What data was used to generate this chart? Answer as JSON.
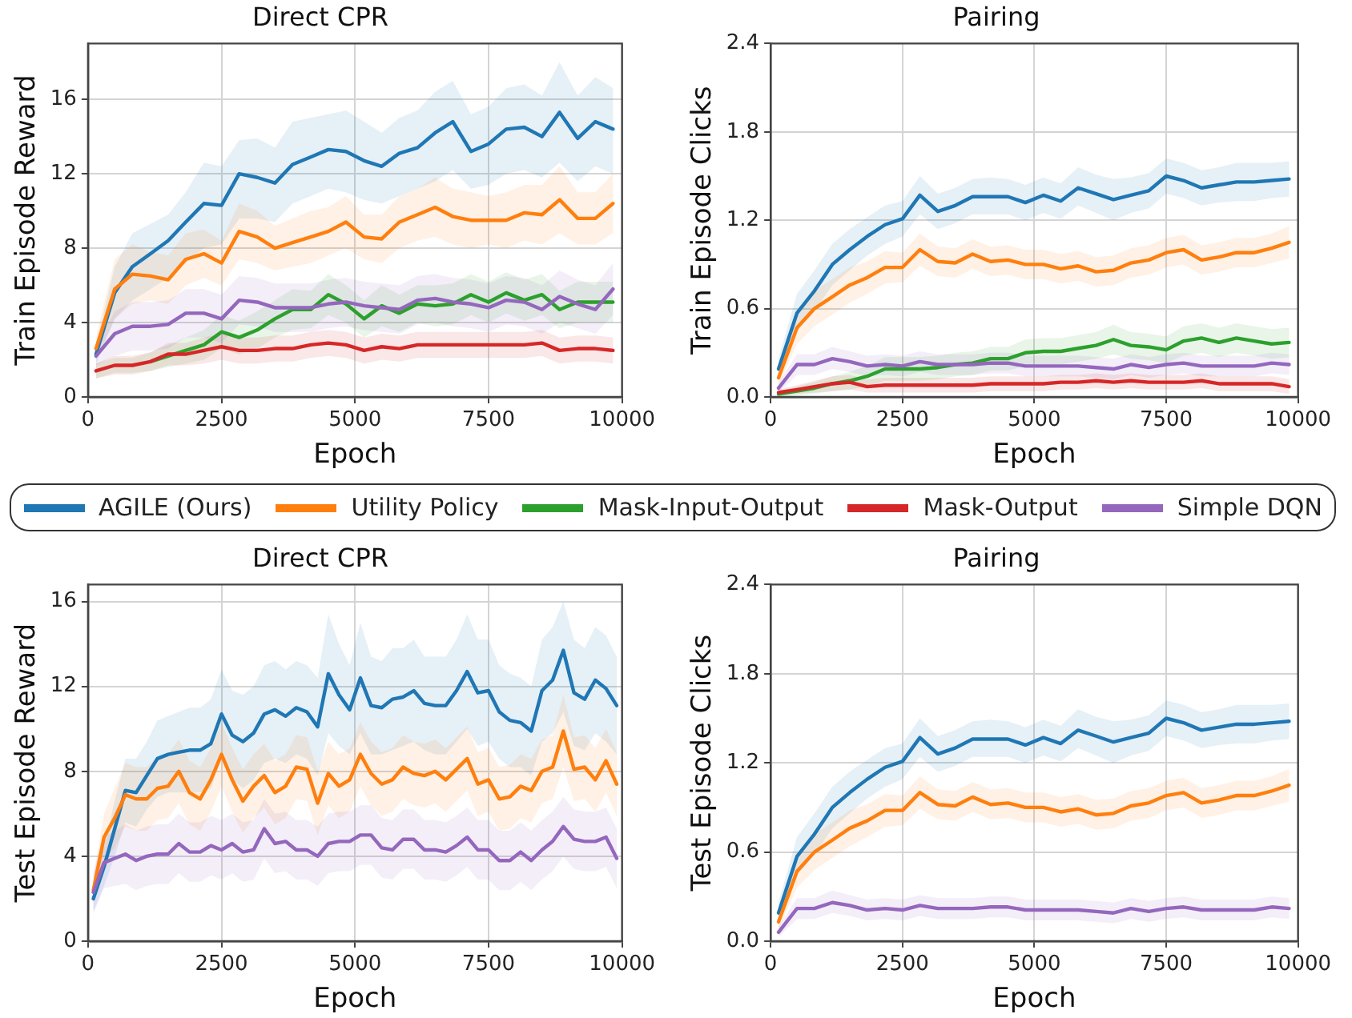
{
  "chart_data": [
    {
      "type": "line",
      "title": "Direct CPR",
      "xlabel": "Epoch",
      "ylabel": "Train Episode Reward",
      "xlim": [
        0,
        10000
      ],
      "xticks": [
        0,
        2500,
        5000,
        7500,
        10000
      ],
      "ylim": [
        0,
        19
      ],
      "yticks": [
        0,
        4,
        8,
        12,
        16
      ],
      "grid": true,
      "legend": "bottom",
      "marker": "none",
      "line_style": "solid",
      "x": [
        150,
        500,
        830,
        1170,
        1500,
        1830,
        2170,
        2500,
        2830,
        3170,
        3500,
        3830,
        4170,
        4500,
        4830,
        5170,
        5500,
        5830,
        6170,
        6500,
        6830,
        7170,
        7500,
        7830,
        8170,
        8500,
        8830,
        9170,
        9500,
        9830
      ],
      "series": [
        {
          "name": "AGILE (Ours)",
          "color": "#1f77b4",
          "values": [
            2.3,
            5.6,
            7.0,
            7.7,
            8.4,
            9.4,
            10.4,
            10.3,
            12.0,
            11.8,
            11.5,
            12.5,
            12.9,
            13.3,
            13.2,
            12.7,
            12.4,
            13.1,
            13.4,
            14.2,
            14.8,
            13.2,
            13.6,
            14.4,
            14.5,
            14.0,
            15.3,
            13.9,
            14.8,
            14.4
          ],
          "lower": [
            1.8,
            4.2,
            5.2,
            5.8,
            6.4,
            7.2,
            8.0,
            8.2,
            9.6,
            9.6,
            9.4,
            10.4,
            10.8,
            11.2,
            11.0,
            10.6,
            10.4,
            10.8,
            11.2,
            11.6,
            12.2,
            11.2,
            11.4,
            12.0,
            12.2,
            11.8,
            12.6,
            11.6,
            12.4,
            12.0
          ],
          "upper": [
            2.8,
            7.0,
            8.8,
            9.3,
            9.8,
            11.0,
            12.6,
            12.4,
            13.8,
            13.9,
            13.4,
            14.8,
            15.0,
            15.2,
            15.4,
            14.8,
            14.2,
            15.0,
            15.4,
            16.4,
            17.0,
            15.2,
            15.6,
            16.6,
            16.8,
            16.2,
            18.0,
            16.2,
            17.2,
            16.6
          ]
        },
        {
          "name": "Utility Policy",
          "color": "#ff7f0e",
          "values": [
            2.6,
            5.8,
            6.6,
            6.5,
            6.3,
            7.4,
            7.7,
            7.2,
            8.9,
            8.6,
            8.0,
            8.3,
            8.6,
            8.9,
            9.4,
            8.6,
            8.5,
            9.4,
            9.8,
            10.2,
            9.7,
            9.5,
            9.5,
            9.5,
            9.9,
            9.8,
            10.6,
            9.6,
            9.6,
            10.4
          ],
          "lower": [
            2.0,
            4.2,
            5.0,
            5.2,
            5.0,
            6.0,
            6.4,
            6.0,
            7.4,
            7.2,
            6.8,
            7.0,
            7.2,
            7.6,
            8.0,
            7.4,
            7.2,
            8.0,
            8.4,
            8.6,
            8.2,
            8.0,
            8.2,
            8.0,
            8.4,
            8.2,
            8.8,
            8.2,
            8.2,
            8.8
          ],
          "upper": [
            3.2,
            7.4,
            8.2,
            7.8,
            7.6,
            8.8,
            9.0,
            8.4,
            10.4,
            10.0,
            9.2,
            9.6,
            10.0,
            10.2,
            10.8,
            9.8,
            9.8,
            10.8,
            11.2,
            11.8,
            11.2,
            11.0,
            10.8,
            11.0,
            11.4,
            11.4,
            12.4,
            11.0,
            11.0,
            12.0
          ]
        },
        {
          "name": "Mask-Input-Output",
          "color": "#2ca02c",
          "values": [
            null,
            null,
            null,
            1.9,
            2.2,
            2.5,
            2.8,
            3.5,
            3.2,
            3.6,
            4.2,
            4.7,
            4.7,
            5.5,
            5.0,
            4.2,
            4.9,
            4.5,
            5.0,
            4.9,
            5.0,
            5.5,
            5.1,
            5.6,
            5.2,
            5.5,
            4.7,
            5.1,
            5.1,
            5.1
          ],
          "lower": [
            1.0,
            1.3,
            1.3,
            1.4,
            1.6,
            1.8,
            2.0,
            2.6,
            2.3,
            2.6,
            3.2,
            3.6,
            3.7,
            4.4,
            4.0,
            3.2,
            3.8,
            3.5,
            4.0,
            3.8,
            3.9,
            4.4,
            4.0,
            4.5,
            4.1,
            4.4,
            3.7,
            4.0,
            4.0,
            4.0
          ],
          "upper": [
            1.8,
            2.1,
            2.1,
            2.4,
            2.8,
            3.2,
            3.6,
            4.4,
            4.1,
            4.6,
            5.2,
            5.8,
            5.7,
            6.6,
            6.0,
            5.2,
            6.0,
            5.5,
            6.0,
            6.0,
            6.1,
            6.6,
            6.2,
            6.7,
            6.3,
            6.6,
            5.7,
            6.2,
            6.2,
            6.2
          ]
        },
        {
          "name": "Mask-Output",
          "color": "#d62728",
          "values": [
            1.4,
            1.7,
            1.7,
            1.9,
            2.3,
            2.3,
            2.5,
            2.7,
            2.5,
            2.5,
            2.6,
            2.6,
            2.8,
            2.9,
            2.8,
            2.5,
            2.7,
            2.6,
            2.8,
            2.8,
            2.8,
            2.8,
            2.8,
            2.8,
            2.8,
            2.9,
            2.5,
            2.6,
            2.6,
            2.5
          ],
          "lower": [
            1.0,
            1.2,
            1.2,
            1.4,
            1.7,
            1.7,
            1.8,
            2.0,
            1.8,
            1.8,
            1.9,
            1.9,
            2.1,
            2.2,
            2.1,
            1.8,
            2.0,
            1.9,
            2.1,
            2.1,
            2.1,
            2.1,
            2.1,
            2.1,
            2.1,
            2.2,
            1.8,
            1.9,
            1.9,
            1.8
          ],
          "upper": [
            1.8,
            2.2,
            2.2,
            2.4,
            2.9,
            2.9,
            3.2,
            3.4,
            3.2,
            3.2,
            3.3,
            3.3,
            3.5,
            3.6,
            3.5,
            3.2,
            3.4,
            3.3,
            3.5,
            3.5,
            3.5,
            3.5,
            3.5,
            3.5,
            3.5,
            3.6,
            3.2,
            3.3,
            3.3,
            3.2
          ]
        },
        {
          "name": "Simple DQN",
          "color": "#9467bd",
          "values": [
            2.2,
            3.4,
            3.8,
            3.8,
            3.9,
            4.5,
            4.5,
            4.2,
            5.2,
            5.1,
            4.8,
            4.8,
            4.8,
            5.0,
            5.1,
            4.9,
            4.8,
            4.7,
            5.2,
            5.3,
            5.1,
            5.0,
            4.8,
            5.2,
            5.1,
            4.7,
            5.4,
            5.0,
            4.7,
            5.8
          ],
          "lower": [
            1.7,
            2.2,
            2.5,
            2.5,
            2.6,
            3.2,
            3.2,
            2.9,
            3.9,
            3.8,
            3.5,
            3.5,
            3.5,
            3.7,
            3.8,
            3.6,
            3.5,
            3.4,
            3.9,
            4.0,
            3.8,
            3.7,
            3.5,
            3.9,
            3.8,
            3.4,
            4.0,
            3.7,
            3.4,
            4.4
          ],
          "upper": [
            2.7,
            4.6,
            5.1,
            5.1,
            5.2,
            5.8,
            5.8,
            5.5,
            6.5,
            6.4,
            6.1,
            6.1,
            6.1,
            6.3,
            6.4,
            6.2,
            6.1,
            6.0,
            6.5,
            6.6,
            6.4,
            6.3,
            6.1,
            6.5,
            6.4,
            6.0,
            6.8,
            6.3,
            6.0,
            7.2
          ]
        }
      ]
    },
    {
      "type": "line",
      "title": "Pairing",
      "xlabel": "Epoch",
      "ylabel": "Train Episode Clicks",
      "xlim": [
        0,
        10000
      ],
      "xticks": [
        0,
        2500,
        5000,
        7500,
        10000
      ],
      "ylim": [
        0,
        2.4
      ],
      "yticks": [
        {
          "value": 0,
          "label": "0.0"
        },
        0.6,
        1.2,
        1.8,
        2.4
      ],
      "grid": true,
      "marker": "none",
      "line_style": "solid",
      "x": [
        150,
        500,
        830,
        1170,
        1500,
        1830,
        2170,
        2500,
        2830,
        3170,
        3500,
        3830,
        4170,
        4500,
        4830,
        5170,
        5500,
        5830,
        6170,
        6500,
        6830,
        7170,
        7500,
        7830,
        8170,
        8500,
        8830,
        9170,
        9500,
        9830
      ],
      "series": [
        {
          "color": "#1f77b4",
          "values": [
            0.19,
            0.57,
            0.72,
            0.9,
            1.0,
            1.09,
            1.17,
            1.21,
            1.37,
            1.26,
            1.3,
            1.36,
            1.36,
            1.36,
            1.32,
            1.37,
            1.33,
            1.42,
            1.38,
            1.34,
            1.37,
            1.4,
            1.5,
            1.47,
            1.42,
            1.44,
            1.46,
            1.46,
            1.47,
            1.48
          ],
          "lower": [
            0.12,
            0.45,
            0.58,
            0.76,
            0.86,
            0.96,
            1.04,
            1.09,
            1.24,
            1.14,
            1.18,
            1.24,
            1.24,
            1.24,
            1.2,
            1.25,
            1.21,
            1.3,
            1.25,
            1.2,
            1.25,
            1.28,
            1.38,
            1.35,
            1.3,
            1.32,
            1.33,
            1.33,
            1.35,
            1.36
          ],
          "upper": [
            0.26,
            0.7,
            0.86,
            1.04,
            1.14,
            1.22,
            1.3,
            1.33,
            1.5,
            1.38,
            1.42,
            1.48,
            1.49,
            1.48,
            1.44,
            1.49,
            1.45,
            1.56,
            1.51,
            1.48,
            1.49,
            1.52,
            1.62,
            1.59,
            1.54,
            1.56,
            1.59,
            1.59,
            1.59,
            1.6
          ]
        },
        {
          "color": "#ff7f0e",
          "values": [
            0.13,
            0.47,
            0.6,
            0.68,
            0.76,
            0.81,
            0.88,
            0.88,
            1.0,
            0.92,
            0.91,
            0.97,
            0.92,
            0.93,
            0.9,
            0.9,
            0.87,
            0.89,
            0.85,
            0.86,
            0.91,
            0.93,
            0.98,
            1.0,
            0.93,
            0.95,
            0.98,
            0.98,
            1.01,
            1.05
          ],
          "lower": [
            0.08,
            0.36,
            0.48,
            0.56,
            0.64,
            0.7,
            0.77,
            0.78,
            0.89,
            0.82,
            0.81,
            0.87,
            0.82,
            0.83,
            0.8,
            0.8,
            0.77,
            0.79,
            0.75,
            0.76,
            0.81,
            0.83,
            0.88,
            0.9,
            0.83,
            0.85,
            0.88,
            0.88,
            0.91,
            0.94
          ],
          "upper": [
            0.18,
            0.58,
            0.72,
            0.8,
            0.88,
            0.92,
            0.99,
            0.98,
            1.11,
            1.02,
            1.01,
            1.07,
            1.02,
            1.03,
            1.0,
            1.0,
            0.97,
            0.99,
            0.95,
            0.96,
            1.01,
            1.03,
            1.08,
            1.1,
            1.03,
            1.05,
            1.08,
            1.08,
            1.11,
            1.16
          ]
        },
        {
          "color": "#2ca02c",
          "values": [
            0.02,
            0.04,
            0.06,
            0.09,
            0.11,
            0.14,
            0.19,
            0.19,
            0.19,
            0.2,
            0.22,
            0.23,
            0.26,
            0.26,
            0.3,
            0.31,
            0.31,
            0.33,
            0.35,
            0.39,
            0.35,
            0.34,
            0.32,
            0.38,
            0.4,
            0.37,
            0.4,
            0.38,
            0.36,
            0.37
          ],
          "lower": [
            0.0,
            0.01,
            0.02,
            0.04,
            0.05,
            0.07,
            0.11,
            0.11,
            0.11,
            0.12,
            0.14,
            0.15,
            0.18,
            0.18,
            0.21,
            0.22,
            0.22,
            0.24,
            0.26,
            0.29,
            0.26,
            0.25,
            0.23,
            0.28,
            0.3,
            0.27,
            0.3,
            0.28,
            0.26,
            0.27
          ],
          "upper": [
            0.04,
            0.07,
            0.1,
            0.14,
            0.17,
            0.21,
            0.27,
            0.27,
            0.27,
            0.28,
            0.3,
            0.31,
            0.34,
            0.34,
            0.39,
            0.4,
            0.4,
            0.42,
            0.44,
            0.49,
            0.44,
            0.43,
            0.41,
            0.48,
            0.5,
            0.47,
            0.5,
            0.48,
            0.46,
            0.47
          ]
        },
        {
          "color": "#d62728",
          "values": [
            0.03,
            0.05,
            0.07,
            0.09,
            0.1,
            0.07,
            0.08,
            0.08,
            0.08,
            0.08,
            0.08,
            0.08,
            0.09,
            0.09,
            0.09,
            0.09,
            0.1,
            0.1,
            0.11,
            0.1,
            0.11,
            0.1,
            0.1,
            0.1,
            0.11,
            0.09,
            0.09,
            0.09,
            0.09,
            0.07
          ],
          "lower": [
            0.01,
            0.02,
            0.03,
            0.04,
            0.05,
            0.03,
            0.03,
            0.03,
            0.03,
            0.03,
            0.03,
            0.03,
            0.04,
            0.04,
            0.04,
            0.04,
            0.05,
            0.05,
            0.06,
            0.05,
            0.06,
            0.05,
            0.05,
            0.05,
            0.06,
            0.04,
            0.04,
            0.04,
            0.04,
            0.02
          ],
          "upper": [
            0.05,
            0.08,
            0.11,
            0.14,
            0.15,
            0.12,
            0.13,
            0.13,
            0.13,
            0.13,
            0.13,
            0.13,
            0.14,
            0.14,
            0.14,
            0.14,
            0.15,
            0.15,
            0.16,
            0.15,
            0.16,
            0.15,
            0.15,
            0.15,
            0.16,
            0.14,
            0.14,
            0.14,
            0.14,
            0.12
          ]
        },
        {
          "color": "#9467bd",
          "values": [
            0.06,
            0.22,
            0.22,
            0.26,
            0.24,
            0.21,
            0.22,
            0.21,
            0.24,
            0.22,
            0.22,
            0.22,
            0.23,
            0.23,
            0.21,
            0.21,
            0.21,
            0.21,
            0.2,
            0.19,
            0.22,
            0.2,
            0.22,
            0.23,
            0.21,
            0.21,
            0.21,
            0.21,
            0.23,
            0.22
          ],
          "lower": [
            0.03,
            0.15,
            0.15,
            0.19,
            0.17,
            0.14,
            0.15,
            0.14,
            0.17,
            0.15,
            0.15,
            0.15,
            0.16,
            0.16,
            0.14,
            0.14,
            0.14,
            0.14,
            0.13,
            0.12,
            0.15,
            0.13,
            0.15,
            0.16,
            0.14,
            0.14,
            0.14,
            0.14,
            0.16,
            0.15
          ],
          "upper": [
            0.1,
            0.29,
            0.29,
            0.34,
            0.31,
            0.28,
            0.29,
            0.28,
            0.31,
            0.29,
            0.29,
            0.29,
            0.3,
            0.3,
            0.28,
            0.28,
            0.28,
            0.28,
            0.27,
            0.26,
            0.29,
            0.27,
            0.29,
            0.3,
            0.28,
            0.28,
            0.28,
            0.28,
            0.3,
            0.29
          ]
        }
      ]
    },
    {
      "type": "line",
      "title": "Direct CPR",
      "xlabel": "Epoch",
      "ylabel": "Test Episode Reward",
      "xlim": [
        0,
        10000
      ],
      "xticks": [
        0,
        2500,
        5000,
        7500,
        10000
      ],
      "ylim": [
        0,
        16.8
      ],
      "yticks": [
        0,
        4,
        8,
        12,
        16
      ],
      "grid": true,
      "marker": "none",
      "line_style": "solid",
      "x": [
        100,
        300,
        500,
        700,
        900,
        1100,
        1300,
        1500,
        1700,
        1900,
        2100,
        2300,
        2500,
        2700,
        2900,
        3100,
        3300,
        3500,
        3700,
        3900,
        4100,
        4300,
        4500,
        4700,
        4900,
        5100,
        5300,
        5500,
        5700,
        5900,
        6100,
        6300,
        6500,
        6700,
        6900,
        7100,
        7300,
        7500,
        7700,
        7900,
        8100,
        8300,
        8500,
        8700,
        8900,
        9100,
        9300,
        9500,
        9700,
        9900
      ],
      "series": [
        {
          "color": "#1f77b4",
          "values": [
            2.0,
            3.5,
            5.3,
            7.1,
            7.0,
            7.8,
            8.6,
            8.8,
            8.9,
            9.0,
            9.0,
            9.3,
            10.7,
            9.7,
            9.4,
            9.8,
            10.7,
            10.9,
            10.6,
            11.0,
            10.8,
            10.1,
            12.6,
            11.6,
            10.9,
            12.4,
            11.1,
            11.0,
            11.4,
            11.5,
            11.8,
            11.2,
            11.1,
            11.1,
            11.8,
            12.7,
            11.7,
            11.8,
            10.8,
            10.4,
            10.3,
            9.9,
            11.8,
            12.3,
            13.7,
            11.7,
            11.4,
            12.3,
            11.9,
            11.1
          ],
          "lower": [
            1.4,
            2.6,
            4.0,
            5.6,
            5.4,
            6.2,
            6.8,
            7.0,
            7.0,
            7.0,
            7.0,
            7.2,
            8.6,
            7.6,
            7.2,
            7.6,
            8.4,
            8.6,
            8.4,
            8.8,
            8.6,
            7.8,
            9.8,
            9.2,
            8.8,
            9.8,
            8.8,
            8.8,
            9.0,
            9.2,
            9.4,
            9.0,
            8.8,
            8.8,
            9.4,
            10.0,
            9.2,
            9.4,
            8.6,
            8.2,
            8.2,
            7.8,
            9.4,
            9.8,
            10.8,
            9.2,
            9.0,
            9.8,
            9.4,
            8.8
          ],
          "upper": [
            2.6,
            4.4,
            6.6,
            8.6,
            8.6,
            9.4,
            10.4,
            10.6,
            10.8,
            11.0,
            11.0,
            11.4,
            12.8,
            11.8,
            11.6,
            12.0,
            13.0,
            13.2,
            12.8,
            13.2,
            13.0,
            12.4,
            15.4,
            14.0,
            13.0,
            15.0,
            13.4,
            13.2,
            13.8,
            13.8,
            14.2,
            13.4,
            13.4,
            13.4,
            14.2,
            15.4,
            14.2,
            14.2,
            13.0,
            12.6,
            12.4,
            12.0,
            14.2,
            14.8,
            16.0,
            14.2,
            13.8,
            14.8,
            14.4,
            13.4
          ]
        },
        {
          "color": "#ff7f0e",
          "values": [
            2.4,
            4.9,
            5.8,
            6.9,
            6.7,
            6.7,
            7.2,
            7.3,
            8.0,
            7.0,
            6.7,
            7.6,
            8.8,
            7.6,
            6.6,
            7.3,
            7.8,
            7.0,
            7.3,
            8.2,
            8.1,
            6.5,
            7.9,
            7.3,
            7.6,
            8.8,
            7.9,
            7.4,
            7.6,
            8.2,
            7.9,
            7.8,
            8.0,
            7.6,
            8.1,
            8.6,
            7.4,
            7.6,
            6.7,
            6.8,
            7.3,
            7.1,
            8.0,
            8.2,
            9.9,
            8.1,
            8.2,
            7.6,
            8.5,
            7.4
          ],
          "lower": [
            1.8,
            3.8,
            4.4,
            5.4,
            5.2,
            5.2,
            5.7,
            5.8,
            6.5,
            5.5,
            5.2,
            6.1,
            7.3,
            6.1,
            5.1,
            5.8,
            6.3,
            5.5,
            5.8,
            6.7,
            6.6,
            5.0,
            6.4,
            5.8,
            6.1,
            7.3,
            6.4,
            5.9,
            6.1,
            6.7,
            6.4,
            6.3,
            6.5,
            6.1,
            6.6,
            7.1,
            5.9,
            6.1,
            5.2,
            5.3,
            5.8,
            5.6,
            6.5,
            6.7,
            8.2,
            6.6,
            6.7,
            6.1,
            7.0,
            5.9
          ],
          "upper": [
            3.0,
            6.0,
            7.2,
            8.4,
            8.2,
            8.2,
            8.7,
            8.8,
            9.5,
            8.5,
            8.2,
            9.1,
            10.3,
            9.1,
            8.1,
            8.8,
            9.3,
            8.5,
            8.8,
            9.7,
            9.6,
            8.0,
            9.4,
            8.8,
            9.1,
            10.3,
            9.4,
            8.9,
            9.1,
            9.7,
            9.4,
            9.3,
            9.5,
            9.1,
            9.6,
            10.1,
            8.9,
            9.1,
            8.2,
            8.3,
            8.8,
            8.6,
            9.5,
            9.7,
            11.6,
            9.6,
            9.7,
            9.1,
            10.0,
            8.9
          ]
        },
        {
          "color": "#9467bd",
          "values": [
            2.3,
            3.7,
            3.9,
            4.1,
            3.8,
            4.0,
            4.1,
            4.1,
            4.6,
            4.2,
            4.2,
            4.5,
            4.3,
            4.6,
            4.2,
            4.3,
            5.3,
            4.6,
            4.7,
            4.3,
            4.3,
            4.0,
            4.6,
            4.7,
            4.7,
            5.0,
            5.0,
            4.4,
            4.3,
            4.8,
            4.8,
            4.3,
            4.3,
            4.2,
            4.5,
            4.9,
            4.3,
            4.3,
            3.8,
            3.8,
            4.2,
            3.8,
            4.3,
            4.7,
            5.4,
            4.8,
            4.7,
            4.7,
            4.9,
            3.9
          ],
          "lower": [
            1.3,
            2.5,
            2.6,
            2.7,
            2.4,
            2.6,
            2.7,
            2.7,
            3.2,
            2.8,
            2.8,
            3.1,
            2.9,
            3.2,
            2.8,
            2.9,
            3.9,
            3.2,
            3.3,
            2.9,
            2.9,
            2.6,
            3.2,
            3.3,
            3.3,
            3.6,
            3.6,
            3.0,
            2.9,
            3.4,
            3.4,
            2.9,
            2.9,
            2.8,
            3.1,
            3.5,
            2.9,
            2.9,
            2.4,
            2.4,
            2.8,
            2.4,
            2.9,
            3.3,
            4.0,
            3.4,
            3.3,
            3.3,
            3.5,
            2.5
          ],
          "upper": [
            3.3,
            4.9,
            5.2,
            5.5,
            5.2,
            5.4,
            5.5,
            5.5,
            6.0,
            5.6,
            5.6,
            5.9,
            5.7,
            6.0,
            5.6,
            5.7,
            6.7,
            6.0,
            6.1,
            5.7,
            5.7,
            5.4,
            6.0,
            6.1,
            6.1,
            6.4,
            6.4,
            5.8,
            5.7,
            6.2,
            6.2,
            5.7,
            5.7,
            5.6,
            5.9,
            6.3,
            5.7,
            5.7,
            5.2,
            5.2,
            5.6,
            5.2,
            5.7,
            6.1,
            6.8,
            6.2,
            6.1,
            6.1,
            6.3,
            5.3
          ]
        }
      ]
    },
    {
      "type": "line",
      "title": "Pairing",
      "xlabel": "Epoch",
      "ylabel": "Test Episode Clicks",
      "xlim": [
        0,
        10000
      ],
      "xticks": [
        0,
        2500,
        5000,
        7500,
        10000
      ],
      "ylim": [
        0,
        2.4
      ],
      "yticks": [
        {
          "value": 0,
          "label": "0.0"
        },
        0.6,
        1.2,
        1.8,
        2.4
      ],
      "grid": true,
      "marker": "none",
      "line_style": "solid",
      "x": [
        150,
        500,
        830,
        1170,
        1500,
        1830,
        2170,
        2500,
        2830,
        3170,
        3500,
        3830,
        4170,
        4500,
        4830,
        5170,
        5500,
        5830,
        6170,
        6500,
        6830,
        7170,
        7500,
        7830,
        8170,
        8500,
        8830,
        9170,
        9500,
        9830
      ],
      "series": [
        {
          "color": "#1f77b4",
          "values": [
            0.19,
            0.57,
            0.72,
            0.9,
            1.0,
            1.09,
            1.17,
            1.21,
            1.37,
            1.26,
            1.3,
            1.36,
            1.36,
            1.36,
            1.32,
            1.37,
            1.33,
            1.42,
            1.38,
            1.34,
            1.37,
            1.4,
            1.5,
            1.47,
            1.42,
            1.44,
            1.46,
            1.46,
            1.47,
            1.48
          ],
          "lower": [
            0.12,
            0.45,
            0.58,
            0.76,
            0.86,
            0.96,
            1.04,
            1.09,
            1.24,
            1.14,
            1.18,
            1.24,
            1.24,
            1.24,
            1.2,
            1.25,
            1.21,
            1.3,
            1.25,
            1.2,
            1.25,
            1.28,
            1.38,
            1.35,
            1.3,
            1.32,
            1.33,
            1.33,
            1.35,
            1.36
          ],
          "upper": [
            0.26,
            0.7,
            0.86,
            1.04,
            1.14,
            1.22,
            1.3,
            1.33,
            1.5,
            1.38,
            1.42,
            1.48,
            1.49,
            1.48,
            1.44,
            1.49,
            1.45,
            1.56,
            1.51,
            1.48,
            1.49,
            1.52,
            1.62,
            1.59,
            1.54,
            1.56,
            1.59,
            1.59,
            1.59,
            1.6
          ]
        },
        {
          "color": "#ff7f0e",
          "values": [
            0.13,
            0.47,
            0.6,
            0.68,
            0.76,
            0.81,
            0.88,
            0.88,
            1.0,
            0.92,
            0.91,
            0.97,
            0.92,
            0.93,
            0.9,
            0.9,
            0.87,
            0.89,
            0.85,
            0.86,
            0.91,
            0.93,
            0.98,
            1.0,
            0.93,
            0.95,
            0.98,
            0.98,
            1.01,
            1.05
          ],
          "lower": [
            0.08,
            0.36,
            0.48,
            0.56,
            0.64,
            0.7,
            0.77,
            0.78,
            0.89,
            0.82,
            0.81,
            0.87,
            0.82,
            0.83,
            0.8,
            0.8,
            0.77,
            0.79,
            0.75,
            0.76,
            0.81,
            0.83,
            0.88,
            0.9,
            0.83,
            0.85,
            0.88,
            0.88,
            0.91,
            0.94
          ],
          "upper": [
            0.18,
            0.58,
            0.72,
            0.8,
            0.88,
            0.92,
            0.99,
            0.98,
            1.11,
            1.02,
            1.01,
            1.07,
            1.02,
            1.03,
            1.0,
            1.0,
            0.97,
            0.99,
            0.95,
            0.96,
            1.01,
            1.03,
            1.08,
            1.1,
            1.03,
            1.05,
            1.08,
            1.08,
            1.11,
            1.16
          ]
        },
        {
          "color": "#9467bd",
          "values": [
            0.06,
            0.22,
            0.22,
            0.26,
            0.24,
            0.21,
            0.22,
            0.21,
            0.24,
            0.22,
            0.22,
            0.22,
            0.23,
            0.23,
            0.21,
            0.21,
            0.21,
            0.21,
            0.2,
            0.19,
            0.22,
            0.2,
            0.22,
            0.23,
            0.21,
            0.21,
            0.21,
            0.21,
            0.23,
            0.22
          ],
          "lower": [
            0.03,
            0.15,
            0.15,
            0.19,
            0.17,
            0.14,
            0.15,
            0.14,
            0.17,
            0.15,
            0.15,
            0.15,
            0.16,
            0.16,
            0.14,
            0.14,
            0.14,
            0.14,
            0.13,
            0.12,
            0.15,
            0.13,
            0.15,
            0.16,
            0.14,
            0.14,
            0.14,
            0.14,
            0.16,
            0.15
          ],
          "upper": [
            0.1,
            0.29,
            0.29,
            0.34,
            0.31,
            0.28,
            0.29,
            0.28,
            0.31,
            0.29,
            0.29,
            0.29,
            0.3,
            0.3,
            0.28,
            0.28,
            0.28,
            0.28,
            0.27,
            0.26,
            0.29,
            0.27,
            0.29,
            0.3,
            0.28,
            0.28,
            0.28,
            0.28,
            0.3,
            0.29
          ]
        }
      ]
    }
  ]
}
